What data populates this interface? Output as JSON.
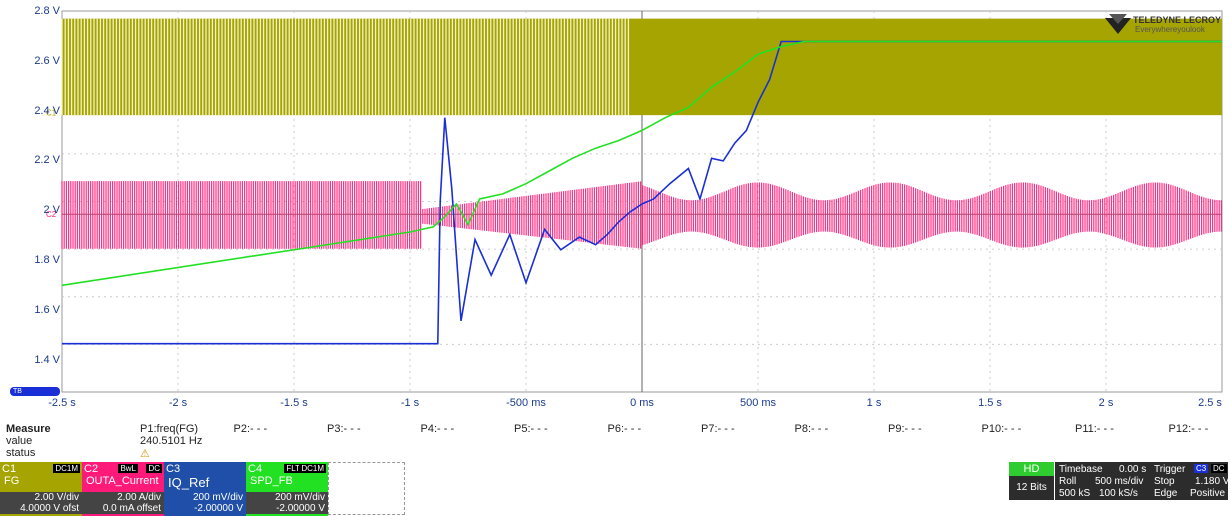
{
  "brand": {
    "name": "TELEDYNE LECROY",
    "tagline": "Everywhereyoulook"
  },
  "channel_markers": {
    "c1": "C1",
    "c2": "C2",
    "c4": "C4",
    "timebase_marker": "TB"
  },
  "chart_data": {
    "type": "line",
    "title": "",
    "xlabel": "",
    "ylabel": "",
    "x_unit": "s",
    "xlim": [
      -2.5,
      2.5
    ],
    "ylim": [
      1.3,
      2.8
    ],
    "grid": true,
    "y_ticks": [
      "2.8 V",
      "2.6 V",
      "2.4 V",
      "2.2 V",
      "2 V",
      "1.8 V",
      "1.6 V",
      "1.4 V"
    ],
    "x_ticks": [
      "-2.5 s",
      "-2 s",
      "-1.5 s",
      "-1 s",
      "-500 ms",
      "0 ms",
      "500 ms",
      "1 s",
      "1.5 s",
      "2 s",
      "2.5 s"
    ],
    "series": [
      {
        "name": "IQ_Ref",
        "color": "#1a2fd6",
        "x": [
          -2.5,
          -0.88,
          -0.87,
          -0.85,
          -0.82,
          -0.78,
          -0.72,
          -0.65,
          -0.57,
          -0.5,
          -0.42,
          -0.35,
          -0.27,
          -0.2,
          -0.15,
          -0.1,
          -0.05,
          0.0,
          0.05,
          0.12,
          0.2,
          0.25,
          0.3,
          0.35,
          0.4,
          0.45,
          0.5,
          0.55,
          0.6,
          0.65,
          2.5
        ],
        "y": [
          1.49,
          1.49,
          2.05,
          2.38,
          2.1,
          1.58,
          1.9,
          1.76,
          1.92,
          1.73,
          1.94,
          1.86,
          1.91,
          1.88,
          1.92,
          1.97,
          2.01,
          2.04,
          2.06,
          2.12,
          2.18,
          2.06,
          2.22,
          2.21,
          2.28,
          2.33,
          2.44,
          2.53,
          2.68,
          2.68,
          2.68
        ]
      },
      {
        "name": "SPD_FB",
        "color": "#22e022",
        "x": [
          -2.5,
          -1.0,
          -0.9,
          -0.85,
          -0.8,
          -0.75,
          -0.7,
          -0.6,
          -0.5,
          -0.4,
          -0.3,
          -0.2,
          -0.1,
          0.0,
          0.1,
          0.2,
          0.3,
          0.4,
          0.5,
          0.6,
          0.7,
          0.8,
          2.5
        ],
        "y": [
          1.72,
          1.93,
          1.95,
          1.99,
          2.04,
          1.96,
          2.06,
          2.08,
          2.12,
          2.17,
          2.22,
          2.26,
          2.29,
          2.33,
          2.38,
          2.42,
          2.5,
          2.56,
          2.63,
          2.66,
          2.68,
          2.68,
          2.68
        ]
      },
      {
        "name": "FG",
        "color": "#a6a400",
        "envelope_low": 2.39,
        "envelope_high": 2.77
      },
      {
        "name": "OUTA_Current",
        "color": "#ff1a7a",
        "envelope_center": 1.99,
        "envelope_amplitude": 0.14
      }
    ]
  },
  "trace_markers": {
    "c1": "C1",
    "c2": "C2"
  },
  "measure": {
    "header": "Measure",
    "row_labels": {
      "value": "value",
      "status": "status"
    },
    "params": [
      {
        "name": "P1:freq(FG)",
        "value": "240.5101 Hz",
        "status": "⚠"
      },
      {
        "name": "P2:- - -",
        "value": "",
        "status": ""
      },
      {
        "name": "P3:- - -",
        "value": "",
        "status": ""
      },
      {
        "name": "P4:- - -",
        "value": "",
        "status": ""
      },
      {
        "name": "P5:- - -",
        "value": "",
        "status": ""
      },
      {
        "name": "P6:- - -",
        "value": "",
        "status": ""
      },
      {
        "name": "P7:- - -",
        "value": "",
        "status": ""
      },
      {
        "name": "P8:- - -",
        "value": "",
        "status": ""
      },
      {
        "name": "P9:- - -",
        "value": "",
        "status": ""
      },
      {
        "name": "P10:- - -",
        "value": "",
        "status": ""
      },
      {
        "name": "P11:- - -",
        "value": "",
        "status": ""
      },
      {
        "name": "P12:- - -",
        "value": "",
        "status": ""
      }
    ]
  },
  "channels": [
    {
      "id": "C1",
      "tags": [
        "DC1M"
      ],
      "name": "FG",
      "vdiv": "2.00 V/div",
      "offset": "4.0000 V ofst",
      "color": "#a6a400"
    },
    {
      "id": "C2",
      "tags": [
        "BwL",
        "DC"
      ],
      "name": "OUTA_Current",
      "vdiv": "2.00 A/div",
      "offset": "0.0 mA offset",
      "color": "#ff1a7a"
    },
    {
      "id": "C3",
      "tags": [],
      "name": "IQ_Ref",
      "vdiv": "200 mV/div",
      "offset": "-2.00000 V",
      "color": "#1f4fa8"
    },
    {
      "id": "C4",
      "tags": [
        "FLT",
        "DC1M"
      ],
      "name": "SPD_FB",
      "vdiv": "200 mV/div",
      "offset": "-2.00000 V",
      "color": "#22e022"
    }
  ],
  "acquisition": {
    "hd": "HD",
    "bits": "12 Bits",
    "timebase_label": "Timebase",
    "timebase_delay": "0.00 s",
    "mode": "Roll",
    "time_div": "500 ms/div",
    "samples": "500 kS",
    "sample_rate": "100 kS/s",
    "trigger_label": "Trigger",
    "trigger_source": "C3",
    "trigger_coupling": "DC",
    "trigger_state": "Stop",
    "trigger_level": "1.180 V",
    "trigger_type": "Edge",
    "trigger_slope": "Positive"
  }
}
